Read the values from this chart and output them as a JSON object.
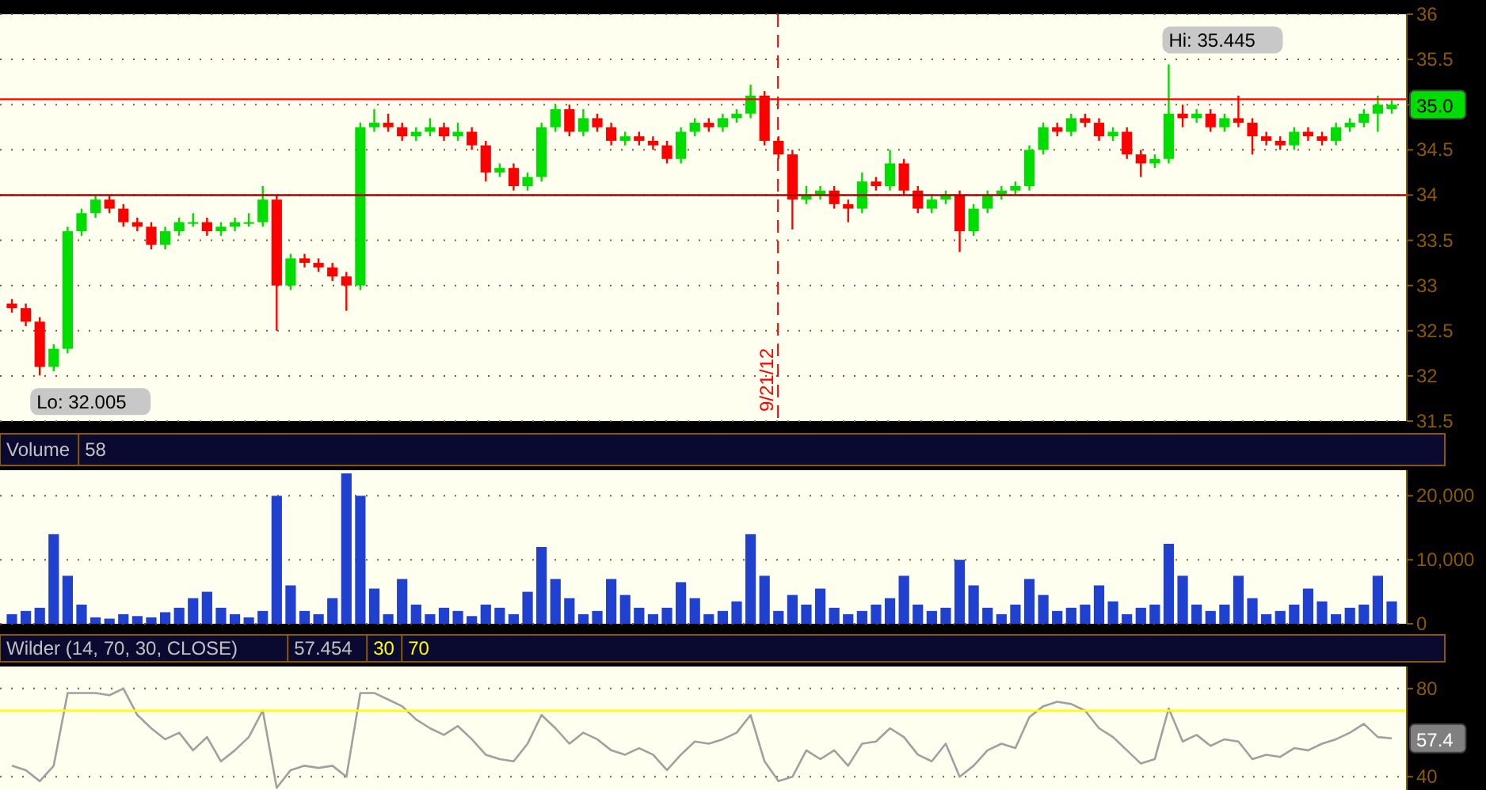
{
  "chart_data": [
    {
      "type": "candlestick",
      "categories": [
        null,
        null,
        null,
        null,
        null,
        null,
        null,
        null,
        null,
        null,
        null,
        null,
        null,
        null,
        null,
        null,
        null,
        null,
        null,
        null,
        null,
        null,
        null,
        null,
        null,
        null,
        null,
        null,
        null,
        null,
        null,
        null,
        null,
        null,
        null,
        null,
        null,
        null,
        null,
        null,
        null,
        null,
        null,
        null,
        null,
        null,
        null,
        null,
        null,
        null,
        null,
        null,
        null,
        null,
        null,
        null,
        null,
        null,
        null,
        null,
        null,
        null,
        null,
        null,
        null,
        null,
        null,
        null,
        null,
        null,
        null,
        null,
        null,
        null,
        null,
        null,
        null,
        null,
        null,
        null,
        null,
        null,
        null,
        null,
        null,
        null,
        null,
        null,
        null,
        null,
        null,
        null,
        null,
        null,
        null,
        null,
        null,
        null,
        null,
        null
      ],
      "ohlc": [
        [
          32.8,
          32.85,
          32.7,
          32.75
        ],
        [
          32.75,
          32.8,
          32.55,
          32.6
        ],
        [
          32.6,
          32.65,
          32.005,
          32.1
        ],
        [
          32.1,
          32.35,
          32.05,
          32.3
        ],
        [
          32.3,
          33.65,
          32.25,
          33.6
        ],
        [
          33.6,
          33.85,
          33.55,
          33.8
        ],
        [
          33.8,
          34.0,
          33.75,
          33.95
        ],
        [
          33.95,
          34.0,
          33.8,
          33.85
        ],
        [
          33.85,
          33.9,
          33.65,
          33.7
        ],
        [
          33.7,
          33.75,
          33.6,
          33.65
        ],
        [
          33.65,
          33.7,
          33.4,
          33.45
        ],
        [
          33.45,
          33.65,
          33.4,
          33.6
        ],
        [
          33.6,
          33.75,
          33.55,
          33.7
        ],
        [
          33.7,
          33.8,
          33.65,
          33.7
        ],
        [
          33.7,
          33.75,
          33.55,
          33.6
        ],
        [
          33.6,
          33.7,
          33.55,
          33.65
        ],
        [
          33.65,
          33.75,
          33.6,
          33.7
        ],
        [
          33.7,
          33.8,
          33.65,
          33.7
        ],
        [
          33.7,
          34.1,
          33.65,
          33.95
        ],
        [
          33.95,
          34.0,
          32.5,
          33.0
        ],
        [
          33.0,
          33.35,
          32.95,
          33.3
        ],
        [
          33.3,
          33.35,
          33.2,
          33.25
        ],
        [
          33.25,
          33.3,
          33.15,
          33.2
        ],
        [
          33.2,
          33.25,
          33.05,
          33.1
        ],
        [
          33.1,
          33.15,
          32.72,
          33.0
        ],
        [
          33.0,
          34.8,
          32.95,
          34.75
        ],
        [
          34.75,
          34.95,
          34.7,
          34.8
        ],
        [
          34.8,
          34.9,
          34.7,
          34.75
        ],
        [
          34.75,
          34.8,
          34.6,
          34.65
        ],
        [
          34.65,
          34.75,
          34.6,
          34.7
        ],
        [
          34.7,
          34.85,
          34.65,
          34.75
        ],
        [
          34.75,
          34.8,
          34.6,
          34.65
        ],
        [
          34.65,
          34.8,
          34.6,
          34.7
        ],
        [
          34.7,
          34.75,
          34.5,
          34.55
        ],
        [
          34.55,
          34.6,
          34.15,
          34.25
        ],
        [
          34.25,
          34.35,
          34.2,
          34.3
        ],
        [
          34.3,
          34.35,
          34.05,
          34.1
        ],
        [
          34.1,
          34.25,
          34.05,
          34.2
        ],
        [
          34.2,
          34.8,
          34.15,
          34.75
        ],
        [
          34.75,
          35.0,
          34.7,
          34.95
        ],
        [
          34.95,
          35.0,
          34.65,
          34.7
        ],
        [
          34.7,
          34.95,
          34.65,
          34.85
        ],
        [
          34.85,
          34.9,
          34.7,
          34.75
        ],
        [
          34.75,
          34.8,
          34.55,
          34.6
        ],
        [
          34.6,
          34.7,
          34.55,
          34.65
        ],
        [
          34.65,
          34.7,
          34.55,
          34.6
        ],
        [
          34.6,
          34.65,
          34.5,
          34.55
        ],
        [
          34.55,
          34.6,
          34.35,
          34.4
        ],
        [
          34.4,
          34.75,
          34.35,
          34.7
        ],
        [
          34.7,
          34.85,
          34.65,
          34.8
        ],
        [
          34.8,
          34.85,
          34.7,
          34.75
        ],
        [
          34.75,
          34.9,
          34.7,
          34.85
        ],
        [
          34.85,
          34.95,
          34.8,
          34.9
        ],
        [
          34.9,
          35.22,
          34.85,
          35.1
        ],
        [
          35.1,
          35.15,
          34.55,
          34.6
        ],
        [
          34.6,
          34.65,
          34.4,
          34.45
        ],
        [
          34.45,
          34.5,
          33.62,
          33.95
        ],
        [
          33.95,
          34.1,
          33.9,
          34.0
        ],
        [
          34.0,
          34.1,
          33.95,
          34.05
        ],
        [
          34.05,
          34.1,
          33.85,
          33.9
        ],
        [
          33.9,
          33.95,
          33.7,
          33.85
        ],
        [
          33.85,
          34.25,
          33.8,
          34.15
        ],
        [
          34.15,
          34.2,
          34.05,
          34.1
        ],
        [
          34.1,
          34.5,
          34.05,
          34.35
        ],
        [
          34.35,
          34.4,
          34.0,
          34.05
        ],
        [
          34.05,
          34.1,
          33.8,
          33.85
        ],
        [
          33.85,
          34.0,
          33.8,
          33.95
        ],
        [
          33.95,
          34.05,
          33.9,
          34.0
        ],
        [
          34.0,
          34.05,
          33.37,
          33.6
        ],
        [
          33.6,
          33.9,
          33.55,
          33.85
        ],
        [
          33.85,
          34.05,
          33.8,
          34.0
        ],
        [
          34.0,
          34.1,
          33.95,
          34.05
        ],
        [
          34.05,
          34.15,
          34.0,
          34.1
        ],
        [
          34.1,
          34.55,
          34.05,
          34.5
        ],
        [
          34.5,
          34.8,
          34.45,
          34.75
        ],
        [
          34.75,
          34.8,
          34.65,
          34.7
        ],
        [
          34.7,
          34.9,
          34.65,
          34.85
        ],
        [
          34.85,
          34.9,
          34.75,
          34.8
        ],
        [
          34.8,
          34.85,
          34.6,
          34.65
        ],
        [
          34.65,
          34.75,
          34.6,
          34.7
        ],
        [
          34.7,
          34.75,
          34.4,
          34.45
        ],
        [
          34.45,
          34.5,
          34.2,
          34.35
        ],
        [
          34.35,
          34.45,
          34.3,
          34.4
        ],
        [
          34.4,
          35.445,
          34.35,
          34.9
        ],
        [
          34.9,
          35.0,
          34.75,
          34.85
        ],
        [
          34.85,
          34.95,
          34.8,
          34.9
        ],
        [
          34.9,
          34.95,
          34.7,
          34.75
        ],
        [
          34.75,
          34.9,
          34.7,
          34.85
        ],
        [
          34.85,
          35.1,
          34.75,
          34.8
        ],
        [
          34.8,
          34.85,
          34.45,
          34.65
        ],
        [
          34.65,
          34.7,
          34.55,
          34.6
        ],
        [
          34.6,
          34.65,
          34.5,
          34.55
        ],
        [
          34.55,
          34.75,
          34.5,
          34.7
        ],
        [
          34.7,
          34.75,
          34.6,
          34.65
        ],
        [
          34.65,
          34.7,
          34.55,
          34.6
        ],
        [
          34.6,
          34.8,
          34.55,
          34.75
        ],
        [
          34.75,
          34.85,
          34.7,
          34.8
        ],
        [
          34.8,
          34.95,
          34.75,
          34.9
        ],
        [
          34.9,
          35.1,
          34.7,
          35.0
        ],
        [
          34.95,
          35.05,
          34.9,
          35.0
        ]
      ],
      "ylim": [
        31.5,
        36
      ],
      "yticks": [
        31.5,
        32,
        32.5,
        33,
        33.5,
        34,
        34.5,
        {
          "value": 35,
          "label": null
        },
        35.5,
        36
      ],
      "grid": "y",
      "tick_labels": "y",
      "ref_lines": [
        {
          "axis": "y",
          "value": 35.06,
          "color": "#ff0000"
        },
        {
          "axis": "y",
          "value": 34,
          "color": "#b00000"
        }
      ],
      "annotations": [
        "Hi: 35.445",
        "Lo: 32.005",
        "9/21/12",
        "35.0"
      ]
    },
    {
      "type": "bar",
      "title": "Volume",
      "subtitle": "58",
      "color": "#2040d0",
      "categories": [
        null,
        null,
        null,
        null,
        null,
        null,
        null,
        null,
        null,
        null,
        null,
        null,
        null,
        null,
        null,
        null,
        null,
        null,
        null,
        null,
        null,
        null,
        null,
        null,
        null,
        null,
        null,
        null,
        null,
        null,
        null,
        null,
        null,
        null,
        null,
        null,
        null,
        null,
        null,
        null,
        null,
        null,
        null,
        null,
        null,
        null,
        null,
        null,
        null,
        null,
        null,
        null,
        null,
        null,
        null,
        null,
        null,
        null,
        null,
        null,
        null,
        null,
        null,
        null,
        null,
        null,
        null,
        null,
        null,
        null,
        null,
        null,
        null,
        null,
        null,
        null,
        null,
        null,
        null,
        null,
        null,
        null,
        null,
        null,
        null,
        null,
        null,
        null,
        null,
        null,
        null,
        null,
        null,
        null,
        null,
        null,
        null,
        null,
        null,
        null
      ],
      "values": [
        1500,
        2000,
        2500,
        14000,
        7500,
        3000,
        1000,
        800,
        1500,
        1200,
        1000,
        1800,
        2500,
        4000,
        5000,
        2500,
        1500,
        1000,
        2000,
        20000,
        6000,
        2000,
        1500,
        4000,
        23500,
        20000,
        5500,
        1500,
        7000,
        3000,
        1500,
        2500,
        2000,
        1200,
        3000,
        2500,
        1500,
        5000,
        12000,
        7000,
        4000,
        1500,
        2000,
        7000,
        4500,
        2500,
        1500,
        2500,
        6500,
        4000,
        1500,
        2000,
        3500,
        14000,
        7500,
        2000,
        4500,
        3000,
        5500,
        2500,
        1500,
        2000,
        3000,
        4000,
        7500,
        3000,
        2000,
        2500,
        10000,
        6000,
        2500,
        1500,
        3000,
        7000,
        4500,
        2000,
        2500,
        3000,
        6000,
        3500,
        1500,
        2500,
        3000,
        12500,
        7500,
        3000,
        2000,
        3000,
        7500,
        4000,
        1500,
        2000,
        3000,
        5500,
        3500,
        1500,
        2500,
        3000,
        7500,
        3500
      ],
      "ylim": [
        0,
        24000
      ],
      "yticks": [
        0,
        {
          "value": 10000,
          "label": "10,000"
        },
        {
          "value": 20000,
          "label": "20,000"
        }
      ],
      "grid": "y",
      "tick_labels": "y"
    },
    {
      "type": "line",
      "title": "Wilder (14, 70, 30, CLOSE)",
      "subtitle": "57.454",
      "categories": [
        null,
        null,
        null,
        null,
        null,
        null,
        null,
        null,
        null,
        null,
        null,
        null,
        null,
        null,
        null,
        null,
        null,
        null,
        null,
        null,
        null,
        null,
        null,
        null,
        null,
        null,
        null,
        null,
        null,
        null,
        null,
        null,
        null,
        null,
        null,
        null,
        null,
        null,
        null,
        null,
        null,
        null,
        null,
        null,
        null,
        null,
        null,
        null,
        null,
        null,
        null,
        null,
        null,
        null,
        null,
        null,
        null,
        null,
        null,
        null,
        null,
        null,
        null,
        null,
        null,
        null,
        null,
        null,
        null,
        null,
        null,
        null,
        null,
        null,
        null,
        null,
        null,
        null,
        null,
        null,
        null,
        null,
        null,
        null,
        null,
        null,
        null,
        null,
        null,
        null,
        null,
        null,
        null,
        null,
        null,
        null,
        null,
        null,
        null,
        null
      ],
      "series": [
        {
          "color": "#a0a0a0",
          "values": [
            45,
            43,
            38,
            45,
            78,
            78,
            78,
            77,
            80,
            68,
            62,
            57,
            60,
            52,
            58,
            47,
            52,
            58,
            70,
            35,
            43,
            45,
            44,
            45,
            40,
            78,
            78,
            75,
            72,
            66,
            62,
            59,
            63,
            57,
            50,
            48,
            47,
            55,
            68,
            62,
            55,
            60,
            57,
            52,
            50,
            53,
            50,
            43,
            50,
            56,
            55,
            57,
            60,
            68,
            47,
            38,
            40,
            52,
            48,
            52,
            45,
            55,
            56,
            62,
            58,
            50,
            47,
            55,
            40,
            45,
            52,
            55,
            53,
            67,
            72,
            74,
            73,
            70,
            62,
            58,
            52,
            46,
            48,
            71,
            56,
            59,
            54,
            57,
            56,
            48,
            50,
            49,
            53,
            52,
            55,
            57,
            60,
            64,
            58,
            57.4
          ]
        }
      ],
      "ylim": [
        34,
        90
      ],
      "yticks": [
        40,
        80
      ],
      "grid": "y",
      "tick_labels": "y",
      "ref_lines": [
        {
          "axis": "y",
          "value": 70,
          "color": "#ffff00"
        }
      ],
      "annotations": [
        "30",
        "70",
        "57.4"
      ]
    }
  ]
}
